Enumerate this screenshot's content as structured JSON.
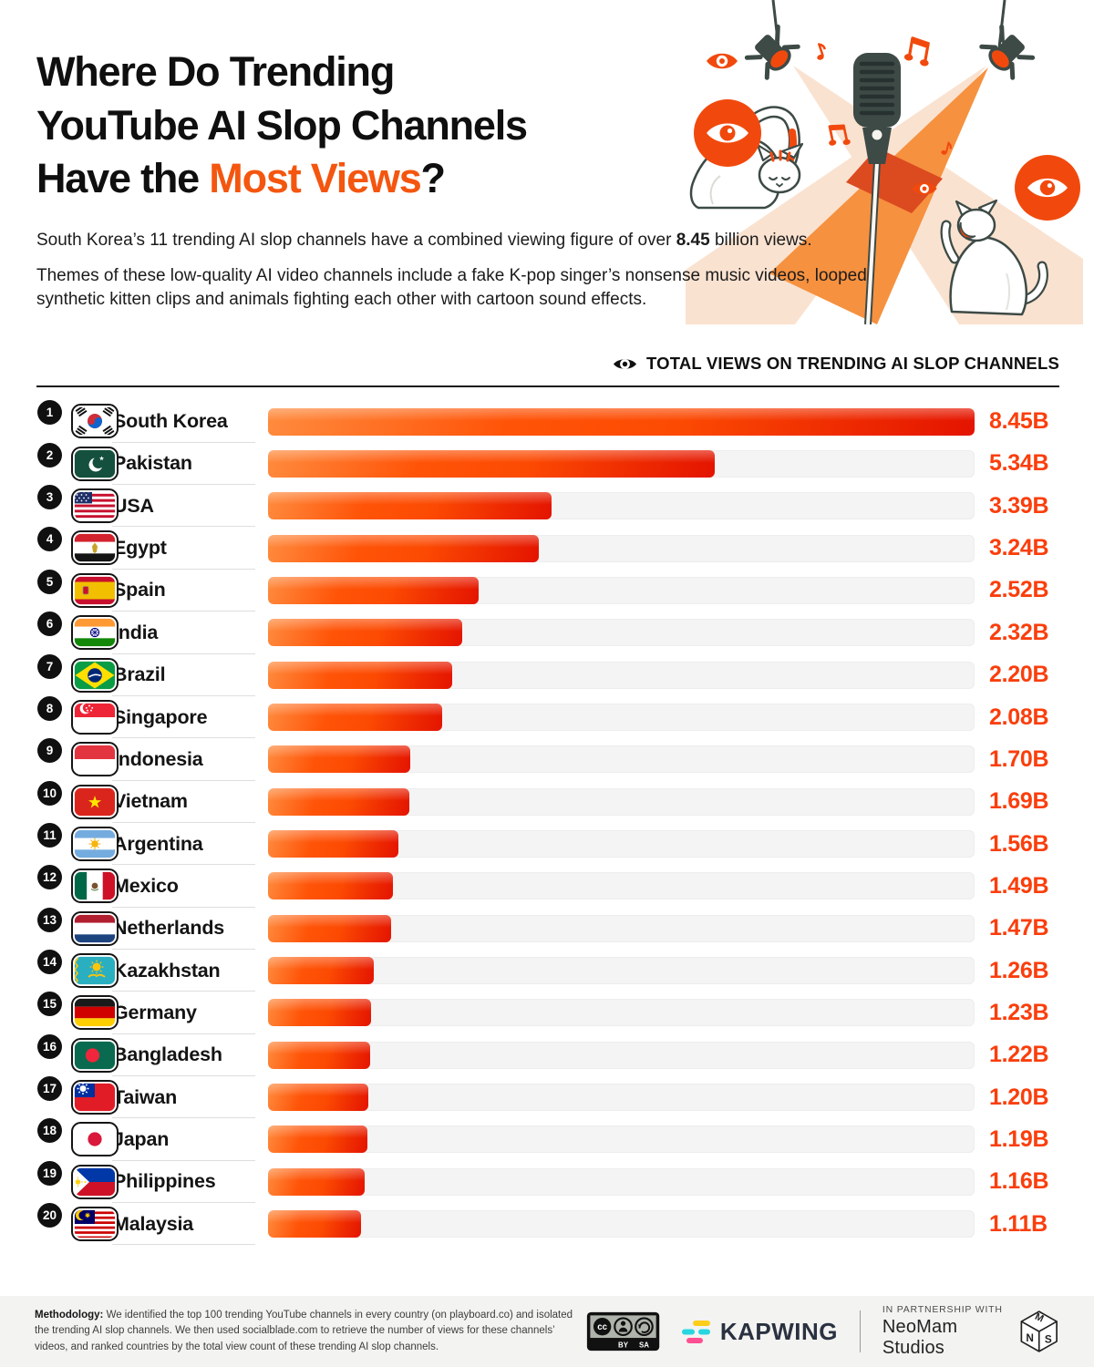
{
  "header": {
    "title": {
      "line1": "Where Do Trending",
      "line2": "YouTube AI Slop Channels",
      "line3_prefix": "Have the ",
      "line3_accent": "Most Views",
      "line3_suffix": "?"
    },
    "intro": {
      "prefix": "South Korea’s 11 trending AI slop channels have a combined viewing figure of over ",
      "bold": "8.45",
      "suffix": " billion views."
    },
    "description": "Themes of these low‑quality AI video channels include a fake K‑pop singer’s nonsense music videos, looped synthetic kitten clips and animals fighting each other with cartoon sound effects."
  },
  "chart_data": {
    "type": "bar",
    "orientation": "horizontal",
    "title": "TOTAL VIEWS ON TRENDING AI SLOP CHANNELS",
    "unit": "billions of views",
    "xlim": [
      0,
      8.45
    ],
    "grid": false,
    "categories": [
      "South Korea",
      "Pakistan",
      "USA",
      "Egypt",
      "Spain",
      "India",
      "Brazil",
      "Singapore",
      "Indonesia",
      "Vietnam",
      "Argentina",
      "Mexico",
      "Netherlands",
      "Kazakhstan",
      "Germany",
      "Bangladesh",
      "Taiwan",
      "Japan",
      "Philippines",
      "Malaysia"
    ],
    "values": [
      8.45,
      5.34,
      3.39,
      3.24,
      2.52,
      2.32,
      2.2,
      2.08,
      1.7,
      1.69,
      1.56,
      1.49,
      1.47,
      1.26,
      1.23,
      1.22,
      1.2,
      1.19,
      1.16,
      1.11
    ],
    "labels": [
      "8.45B",
      "5.34B",
      "3.39B",
      "3.24B",
      "2.52B",
      "2.32B",
      "2.20B",
      "2.08B",
      "1.70B",
      "1.69B",
      "1.56B",
      "1.49B",
      "1.47B",
      "1.26B",
      "1.23B",
      "1.22B",
      "1.20B",
      "1.19B",
      "1.16B",
      "1.11B"
    ],
    "ranks": [
      1,
      2,
      3,
      4,
      5,
      6,
      7,
      8,
      9,
      10,
      11,
      12,
      13,
      14,
      15,
      16,
      17,
      18,
      19,
      20
    ],
    "flags": [
      "kr",
      "pk",
      "us",
      "eg",
      "es",
      "in",
      "br",
      "sg",
      "id",
      "vn",
      "ar",
      "mx",
      "nl",
      "kz",
      "de",
      "bd",
      "tw",
      "jp",
      "ph",
      "my"
    ]
  },
  "footer": {
    "methodology_label": "Methodology:",
    "methodology_text": " We identified the top 100 trending YouTube channels in every country (on playboard.co) and isolated the trending AI slop channels. We then used socialblade.com to retrieve the number of views for these channels’ videos, and ranked countries by the total view count of these trending AI slop channels.",
    "cc_badge": {
      "cc": "cc",
      "by": "BY",
      "sa": "SA"
    },
    "kapwing": "KAPWING",
    "partnership_line1": "IN PARTNERSHIP WITH",
    "partnership_line2": "NeoMam Studios",
    "neomam_cube": {
      "top": "M",
      "left": "N",
      "right": "S"
    }
  },
  "colors": {
    "accent": "#F4560F",
    "value_text": "#FA3E0C",
    "bar_light": "#FF8B3E",
    "bar_mid": "#FF5408",
    "bar_deep": "#E41400",
    "track": "#F4F4F4",
    "ink": "#121212",
    "slate": "#3D4A46",
    "beam_pale": "#FAE2D0",
    "beam_orange": "#F6913F",
    "beam_overlap": "#DC4A20",
    "footer_bg": "#F3F3F1"
  }
}
